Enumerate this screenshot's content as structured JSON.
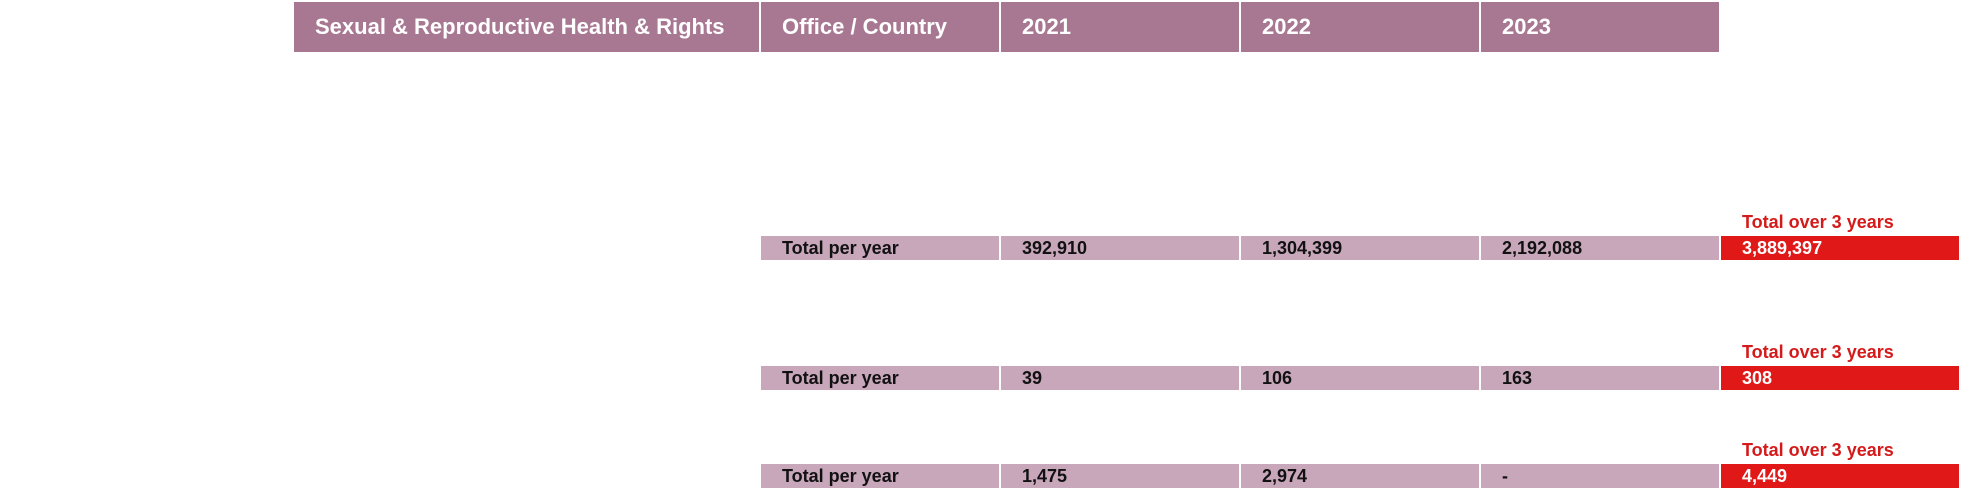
{
  "header": {
    "topic": "Sexual & Reproductive Health & Rights",
    "office_country": "Office / Country",
    "year1": "2021",
    "year2": "2022",
    "year3": "2023"
  },
  "colors": {
    "header_bg": "#a87893",
    "row_bg": "#c9a7bb",
    "total_bg": "#e01818",
    "total_label": "#d41a1a"
  },
  "blocks": [
    {
      "total_label": "Total over 3 years",
      "row_label": "Total per year",
      "y2021": "392,910",
      "y2022": "1,304,399",
      "y2023": "2,192,088",
      "total": "3,889,397"
    },
    {
      "total_label": "Total over 3 years",
      "row_label": "Total per year",
      "y2021": "39",
      "y2022": "106",
      "y2023": "163",
      "total": "308"
    },
    {
      "total_label": "Total over 3 years",
      "row_label": "Total per year",
      "y2021": "1,475",
      "y2022": "2,974",
      "y2023": "-",
      "total": "4,449"
    }
  ]
}
